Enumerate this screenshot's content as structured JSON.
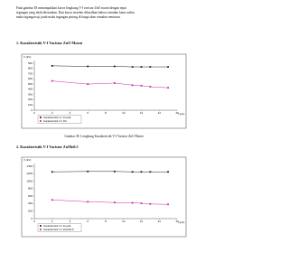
{
  "paragraph": [
    "Pada gambar 38 menampakkan kurva lengkung V-I varistor ZnO murni dengan tepat",
    "tegangan yang telah ditentukan. Dari kurva tersebut dihasilkan bahwa semakin lama waktu",
    "maka tegangan uji jatuh maka tegangan potong di harga akan semakin menurun."
  ],
  "headings": [
    "1.  Karakteristik V-I Varistor ZnO Murni",
    "2.  Karakteristik V-I Varistor ZnMn0.5"
  ],
  "caption": "Gambar 38. Lengkung Karakteristik V-I Varistor ZnO Murni",
  "chart_data": [
    {
      "type": "line",
      "ylabel": "V (kV)",
      "xlabel": "I (µA)",
      "xlim": [
        0,
        16
      ],
      "xticks": [
        0,
        2,
        4,
        6,
        8,
        10,
        12,
        14,
        16
      ],
      "ylim": [
        0,
        900
      ],
      "yticks": [
        0,
        100,
        200,
        300,
        400,
        500,
        600,
        700,
        800,
        900
      ],
      "legend": "lower left",
      "x": [
        2,
        6,
        9,
        11,
        12,
        13,
        15
      ],
      "series": [
        {
          "name": "Karakteristik V-I Impuls",
          "color": "#222222",
          "values": [
            850,
            840,
            840,
            830,
            830,
            830,
            830
          ]
        },
        {
          "name": "Karakteristik V-I DC",
          "color": "#cc2aa0",
          "values": [
            560,
            500,
            520,
            480,
            470,
            450,
            430
          ]
        }
      ]
    },
    {
      "type": "line",
      "ylabel": "V (kV)",
      "xlabel": "I (µA)",
      "xlim": [
        0,
        16
      ],
      "xticks": [
        0,
        2,
        4,
        6,
        8,
        10,
        12,
        14,
        16
      ],
      "ylim": [
        0,
        1400
      ],
      "yticks": [
        0,
        200,
        400,
        600,
        800,
        1000,
        1200,
        1400
      ],
      "legend": "lower left",
      "x": [
        2,
        6,
        9,
        11,
        12,
        13,
        15
      ],
      "series": [
        {
          "name": "Karakteristik V-I Impuls",
          "color": "#222222",
          "values": [
            1250,
            1260,
            1260,
            1250,
            1250,
            1250,
            1250
          ]
        },
        {
          "name": "Karakteristik V-I ZnMn0.5",
          "color": "#cc2aa0",
          "values": [
            500,
            450,
            430,
            420,
            410,
            390,
            380
          ]
        }
      ]
    }
  ]
}
